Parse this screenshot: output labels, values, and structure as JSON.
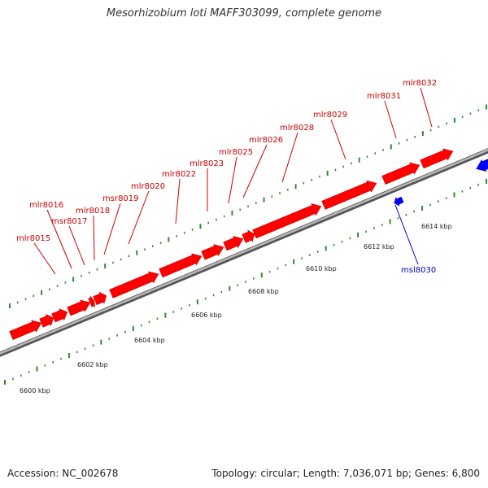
{
  "title": "Mesorhizobium loti MAFF303099, complete genome",
  "footer": {
    "accession": "Accession: NC_002678",
    "summary": "Topology: circular; Length: 7,036,071 bp; Genes: 6,800"
  },
  "colors": {
    "forward_gene": "#ff0000",
    "reverse_gene": "#0000ff",
    "forward_label": "#cc0000",
    "reverse_label": "#0000cc",
    "backbone": "#8c8c8c",
    "tick": "#2e8b2e"
  },
  "scale_unit": "kbp",
  "scale_ticks": [
    "6600 kbp",
    "6602 kbp",
    "6604 kbp",
    "6606 kbp",
    "6608 kbp",
    "6610 kbp",
    "6612 kbp",
    "6614 kbp"
  ],
  "forward_genes": [
    {
      "label": "mlr8015"
    },
    {
      "label": "mlr8016"
    },
    {
      "label": "msr8017"
    },
    {
      "label": "mlr8018"
    },
    {
      "label": "msr8019"
    },
    {
      "label": "mlr8020"
    },
    {
      "label": "mlr8022"
    },
    {
      "label": "mlr8023"
    },
    {
      "label": "mlr8025"
    },
    {
      "label": "mlr8026"
    },
    {
      "label": "mlr8028"
    },
    {
      "label": "mlr8029"
    },
    {
      "label": "mlr8031"
    },
    {
      "label": "mlr8032"
    }
  ],
  "reverse_genes": [
    {
      "label": "msl8030"
    }
  ]
}
